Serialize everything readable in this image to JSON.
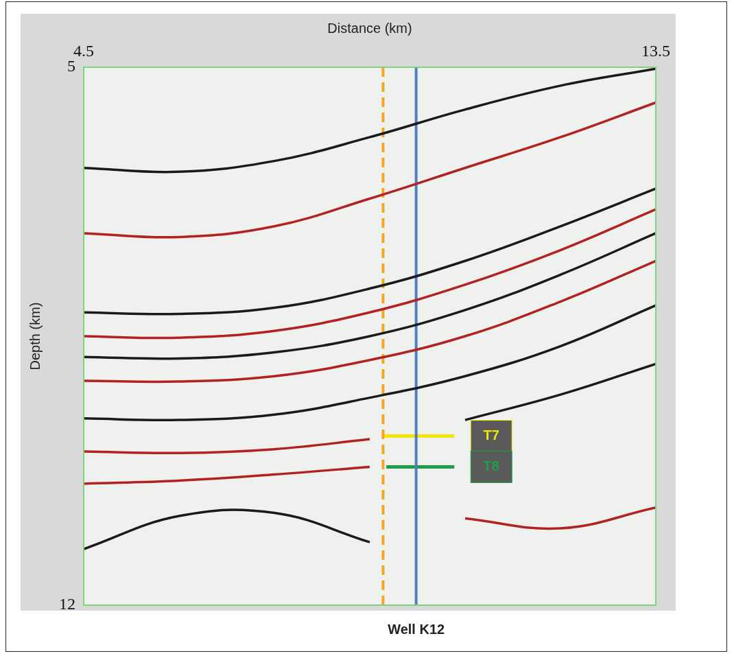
{
  "chart_data": {
    "type": "line",
    "x_label": "Distance (km)",
    "y_label": "Depth (km)",
    "xlim": [
      4.5,
      13.5
    ],
    "xticks": [
      4.5,
      13.5
    ],
    "ylim": [
      12,
      5
    ],
    "yticks": [
      5,
      12
    ],
    "grid": false,
    "x": [
      4.5,
      6,
      7.5,
      9,
      10.5,
      12,
      13.5
    ],
    "series": [
      {
        "color": "#1a1a1a",
        "values": [
          6.31,
          6.36,
          6.22,
          5.91,
          5.55,
          5.24,
          5.02
        ]
      },
      {
        "color": "#b22222",
        "values": [
          7.16,
          7.21,
          7.07,
          6.71,
          6.31,
          5.91,
          5.46
        ]
      },
      {
        "color": "#1a1a1a",
        "values": [
          8.19,
          8.21,
          8.13,
          7.88,
          7.52,
          7.07,
          6.58
        ]
      },
      {
        "color": "#b22222",
        "values": [
          8.5,
          8.52,
          8.43,
          8.19,
          7.83,
          7.38,
          6.85
        ]
      },
      {
        "color": "#1a1a1a",
        "values": [
          8.77,
          8.79,
          8.71,
          8.5,
          8.16,
          7.7,
          7.16
        ]
      },
      {
        "color": "#b22222",
        "values": [
          9.08,
          9.09,
          9.02,
          8.81,
          8.5,
          8.05,
          7.52
        ]
      },
      {
        "color": "#1a1a1a",
        "values": [
          9.57,
          9.59,
          9.52,
          9.3,
          9.02,
          8.63,
          8.1
        ]
      },
      {
        "color": "#b22222",
        "values": [
          10.0,
          10.02,
          9.97,
          9.84,
          null,
          null,
          null
        ]
      },
      {
        "color": "#1a1a1a",
        "values": [
          null,
          null,
          null,
          null,
          9.59,
          9.26,
          8.86
        ]
      },
      {
        "color": "#b22222",
        "values": [
          10.42,
          10.38,
          10.3,
          10.2,
          null,
          null,
          null
        ]
      },
      {
        "color": "#1a1a1a",
        "values": [
          11.27,
          10.84,
          10.8,
          11.18,
          null,
          null,
          null
        ]
      },
      {
        "color": "#b22222",
        "values": [
          null,
          null,
          null,
          null,
          10.87,
          11.0,
          10.73
        ]
      }
    ],
    "vertical_lines": [
      {
        "x": 9.21,
        "color": "#f5a623",
        "line_style": "dashed"
      },
      {
        "x": 9.73,
        "color": "#4f7fc0",
        "line_style": "solid",
        "label": "Well K12"
      }
    ],
    "horizon_picks": [
      {
        "label": "T7",
        "y": 9.8,
        "x": [
          9.21,
          10.33
        ],
        "color": "#f2e600"
      },
      {
        "label": "T8",
        "y": 10.2,
        "x": [
          9.26,
          10.33
        ],
        "color": "#1e9e4a"
      }
    ]
  }
}
